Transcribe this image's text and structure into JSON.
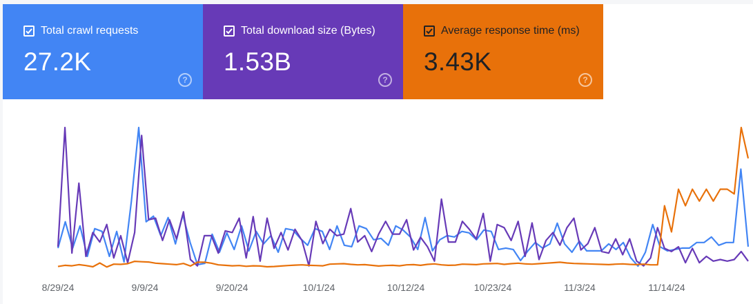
{
  "cards": [
    {
      "label": "Total crawl requests",
      "value": "27.2K",
      "color": "#4285f4",
      "checked": true,
      "help_icon": "help-circle-icon"
    },
    {
      "label": "Total download size (Bytes)",
      "value": "1.53B",
      "color": "#673ab7",
      "checked": true,
      "help_icon": "help-circle-icon"
    },
    {
      "label": "Average response time (ms)",
      "value": "3.43K",
      "color": "#e8710a",
      "checked": true,
      "help_icon": "help-circle-icon"
    }
  ],
  "chart_data": {
    "type": "line",
    "grid": false,
    "legend": "none",
    "xlabel": "",
    "ylabel": "",
    "x_ticks": [
      "8/29/24",
      "9/9/24",
      "9/20/24",
      "10/1/24",
      "10/12/24",
      "10/23/24",
      "11/3/24",
      "11/14/24"
    ],
    "series": [
      {
        "key": "crawl_requests",
        "color": "#4285f4",
        "values": [
          14,
          33,
          14,
          30,
          8,
          28,
          26,
          8,
          26,
          4,
          48,
          101,
          33,
          37,
          23,
          36,
          17,
          38,
          18,
          2,
          3,
          24,
          11,
          25,
          13,
          30,
          12,
          26,
          17,
          23,
          11,
          28,
          27,
          21,
          16,
          28,
          26,
          13,
          30,
          16,
          15,
          30,
          28,
          20,
          21,
          16,
          30,
          27,
          22,
          13,
          36,
          12,
          20,
          23,
          22,
          26,
          25,
          20,
          27,
          26,
          13,
          14,
          13,
          5,
          12,
          18,
          14,
          17,
          32,
          17,
          11,
          19,
          12,
          12,
          12,
          17,
          13,
          18,
          7,
          1,
          11,
          31,
          15,
          12,
          13,
          14,
          14,
          18,
          18,
          22,
          16,
          18,
          18,
          71,
          15
        ]
      },
      {
        "key": "download_size",
        "color": "#673ab7",
        "values": [
          13,
          88,
          9,
          53,
          7,
          22,
          16,
          27,
          6,
          20,
          3,
          22,
          83,
          30,
          31,
          17,
          30,
          18,
          35,
          5,
          1,
          20,
          20,
          9,
          23,
          22,
          31,
          6,
          32,
          4,
          31,
          12,
          22,
          11,
          24,
          17,
          1,
          29,
          15,
          24,
          20,
          21,
          37,
          16,
          20,
          10,
          21,
          29,
          21,
          21,
          30,
          11,
          19,
          13,
          4,
          43,
          16,
          16,
          29,
          24,
          18,
          34,
          4,
          27,
          25,
          17,
          29,
          7,
          28,
          5,
          17,
          22,
          14,
          25,
          31,
          11,
          15,
          25,
          10,
          9,
          18,
          8,
          18,
          4,
          1,
          6,
          25,
          12,
          10,
          13,
          3,
          12,
          3,
          7,
          4,
          5,
          4,
          5,
          10,
          4
        ]
      },
      {
        "key": "response_time",
        "color": "#e8710a",
        "values": [
          40,
          90,
          70,
          120,
          80,
          30,
          190,
          20,
          140,
          130,
          160,
          260,
          240,
          230,
          180,
          160,
          140,
          120,
          170,
          60,
          220,
          220,
          180,
          110,
          90,
          70,
          80,
          50,
          70,
          60,
          30,
          40,
          60,
          80,
          100,
          110,
          90,
          80,
          70,
          140,
          150,
          160,
          130,
          110,
          120,
          90,
          60,
          80,
          90,
          70,
          110,
          120,
          90,
          130,
          150,
          110,
          90,
          100,
          140,
          130,
          120,
          150,
          160,
          170,
          130,
          160,
          180,
          150,
          140,
          160,
          180,
          200,
          220,
          190,
          170,
          160,
          150,
          140,
          130,
          120,
          140,
          150,
          130,
          120,
          140,
          110,
          110,
          2600,
          1500,
          3300,
          2600,
          3300,
          2800,
          3300,
          2800,
          3300,
          3300,
          3100,
          5900,
          4600
        ]
      }
    ]
  }
}
